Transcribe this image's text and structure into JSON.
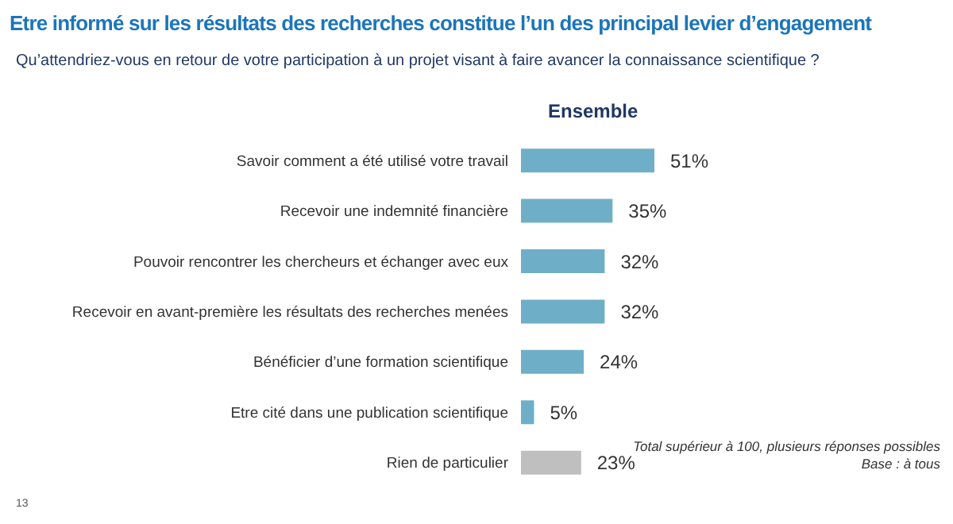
{
  "chart_data": {
    "type": "bar",
    "orientation": "horizontal",
    "title": "Etre informé sur les résultats des recherches constitue l’un des principal levier d’engagement",
    "subtitle": "Qu’attendriez-vous en retour de votre participation à un projet visant à faire avancer la connaissance scientifique ?",
    "categories": [
      "Savoir comment a été utilisé votre travail",
      "Recevoir une indemnité financière",
      "Pouvoir rencontrer les chercheurs et échanger avec eux",
      "Recevoir en avant-première les résultats des recherches menées",
      "Bénéficier d’une formation scientifique",
      "Etre cité dans une publication scientifique",
      "Rien de particulier"
    ],
    "series": [
      {
        "name": "Ensemble",
        "values": [
          51,
          35,
          32,
          32,
          24,
          5,
          23
        ],
        "colors": [
          "#6eafc7",
          "#6eafc7",
          "#6eafc7",
          "#6eafc7",
          "#6eafc7",
          "#6eafc7",
          "#bfbfbf"
        ],
        "value_labels": [
          "51%",
          "35%",
          "32%",
          "32%",
          "24%",
          "5%",
          "23%"
        ]
      }
    ],
    "annotations": [
      "Total supérieur à 100, plusieurs réponses possibles",
      "Base : à tous",
      "13"
    ],
    "data_labels": false
  }
}
